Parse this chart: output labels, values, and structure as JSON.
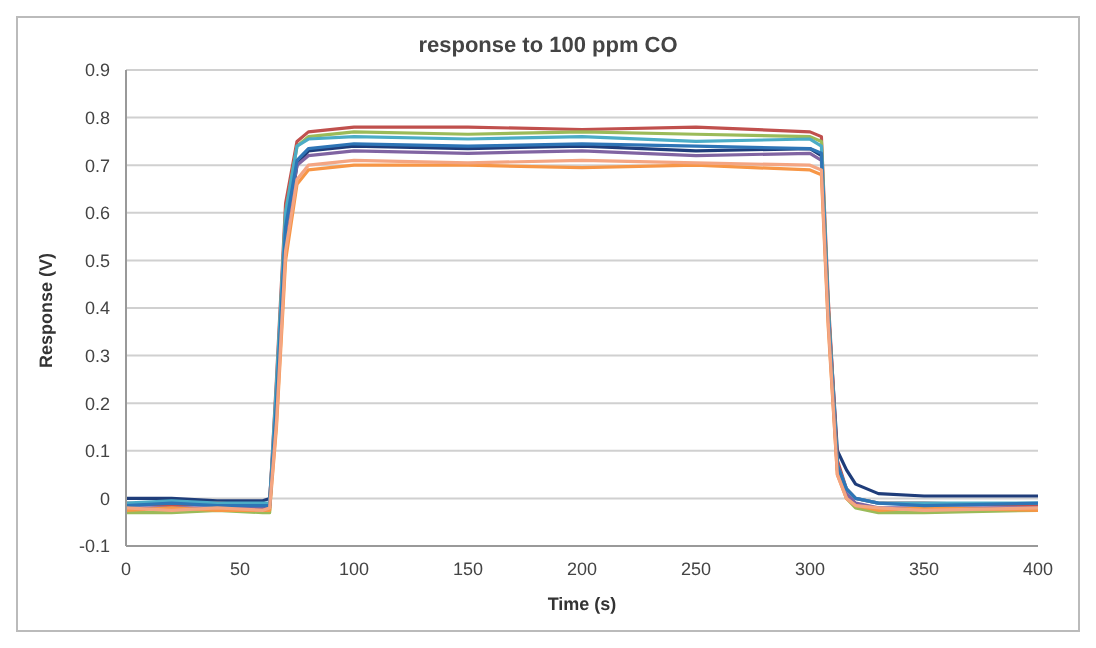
{
  "chart_data": {
    "type": "line",
    "title": "response to 100 ppm CO",
    "xlabel": "Time (s)",
    "ylabel": "Response (V)",
    "x": [
      0,
      20,
      40,
      60,
      63,
      66,
      70,
      75,
      80,
      100,
      150,
      200,
      250,
      300,
      305,
      308,
      312,
      316,
      320,
      330,
      350,
      400
    ],
    "series": [
      {
        "color": "#1f3d7a",
        "values": [
          0,
          0,
          -0.005,
          -0.005,
          0,
          0.2,
          0.55,
          0.7,
          0.73,
          0.74,
          0.735,
          0.74,
          0.73,
          0.735,
          0.72,
          0.4,
          0.1,
          0.06,
          0.03,
          0.01,
          0.005,
          0.005
        ]
      },
      {
        "color": "#c0504d",
        "values": [
          -0.01,
          -0.015,
          -0.01,
          -0.015,
          -0.01,
          0.25,
          0.62,
          0.75,
          0.77,
          0.78,
          0.78,
          0.775,
          0.78,
          0.77,
          0.76,
          0.42,
          0.08,
          0.02,
          0,
          -0.01,
          -0.01,
          -0.015
        ]
      },
      {
        "color": "#9bbb59",
        "values": [
          -0.03,
          -0.03,
          -0.025,
          -0.03,
          -0.03,
          0.22,
          0.6,
          0.74,
          0.76,
          0.77,
          0.765,
          0.77,
          0.765,
          0.76,
          0.75,
          0.4,
          0.06,
          0,
          -0.02,
          -0.03,
          -0.03,
          -0.025
        ]
      },
      {
        "color": "#8064a2",
        "values": [
          -0.02,
          -0.02,
          -0.02,
          -0.02,
          -0.02,
          0.2,
          0.56,
          0.7,
          0.72,
          0.73,
          0.725,
          0.73,
          0.72,
          0.725,
          0.71,
          0.38,
          0.06,
          0.01,
          -0.01,
          -0.02,
          -0.02,
          -0.02
        ]
      },
      {
        "color": "#4bacc6",
        "values": [
          -0.01,
          -0.005,
          -0.01,
          -0.01,
          -0.01,
          0.24,
          0.6,
          0.74,
          0.755,
          0.76,
          0.755,
          0.76,
          0.75,
          0.755,
          0.74,
          0.4,
          0.07,
          0.02,
          0,
          -0.01,
          -0.01,
          -0.01
        ]
      },
      {
        "color": "#f79646",
        "values": [
          -0.025,
          -0.02,
          -0.025,
          -0.025,
          -0.025,
          0.15,
          0.5,
          0.66,
          0.69,
          0.7,
          0.7,
          0.695,
          0.7,
          0.69,
          0.68,
          0.36,
          0.05,
          0,
          -0.015,
          -0.025,
          -0.02,
          -0.025
        ]
      },
      {
        "color": "#2e75b6",
        "values": [
          -0.015,
          -0.01,
          -0.015,
          -0.015,
          -0.015,
          0.2,
          0.57,
          0.71,
          0.735,
          0.745,
          0.74,
          0.745,
          0.74,
          0.735,
          0.725,
          0.39,
          0.07,
          0.02,
          0,
          -0.01,
          -0.015,
          -0.01
        ]
      },
      {
        "color": "#f4a582",
        "values": [
          -0.02,
          -0.025,
          -0.02,
          -0.025,
          -0.02,
          0.16,
          0.52,
          0.67,
          0.7,
          0.71,
          0.705,
          0.71,
          0.705,
          0.7,
          0.69,
          0.37,
          0.05,
          0,
          -0.015,
          -0.02,
          -0.025,
          -0.02
        ]
      }
    ],
    "xlim": [
      0,
      400
    ],
    "xticks": [
      0,
      50,
      100,
      150,
      200,
      250,
      300,
      350,
      400
    ],
    "ylim": [
      -0.1,
      0.9
    ],
    "yticks": [
      -0.1,
      0,
      0.1,
      0.2,
      0.3,
      0.4,
      0.5,
      0.6,
      0.7,
      0.8,
      0.9
    ],
    "grid": "y",
    "marker": "none",
    "line_style": "solid"
  }
}
